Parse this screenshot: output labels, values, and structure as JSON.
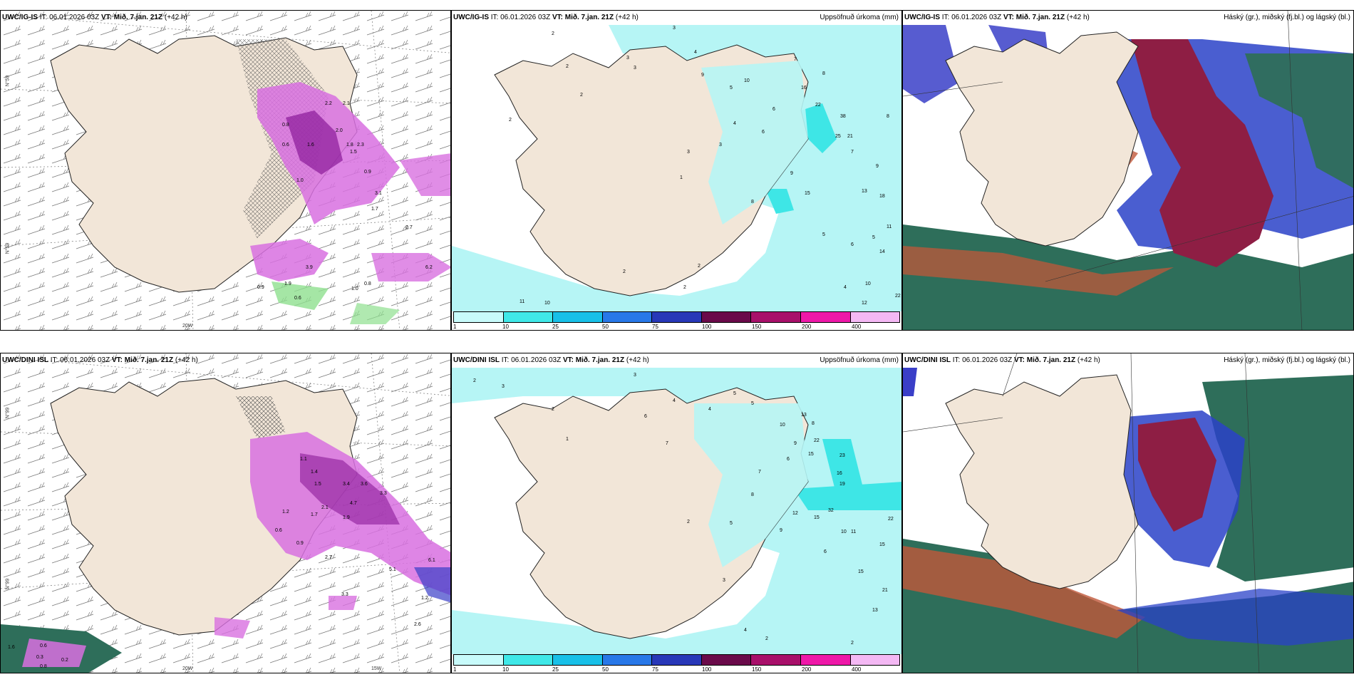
{
  "panels": [
    {
      "id": "tl",
      "title_model": "UWC/IG-IS",
      "title_it": "IT: 06.01.2026 03Z",
      "title_vt": "VT: Mið. 7.jan. 21Z",
      "title_lead": "(+42 h)",
      "right_label": "",
      "axis_labels": [
        "N°59",
        "N°59",
        "20W"
      ]
    },
    {
      "id": "tm",
      "title_model": "UWC/IG-IS",
      "title_it": "IT: 06.01.2026 03Z",
      "title_vt": "VT: Mið. 7.jan. 21Z",
      "title_lead": "(+42 h)",
      "right_label": "Uppsöfnuð úrkoma (mm)"
    },
    {
      "id": "tr",
      "title_model": "UWC/IG-IS",
      "title_it": "IT: 06.01.2026 03Z",
      "title_vt": "VT: Mið. 7.jan. 21Z",
      "title_lead": "(+42 h)",
      "right_label": "Háský (gr.), miðský (fj.bl.) og lágský (bl.)"
    },
    {
      "id": "bl",
      "title_model": "UWC/DINI ISL",
      "title_it": "IT: 06.01.2026 03Z",
      "title_vt": "VT: Mið. 7.jan. 21Z",
      "title_lead": "(+42 h)",
      "right_label": "",
      "axis_labels": [
        "N°99",
        "N°99",
        "20W",
        "15W"
      ]
    },
    {
      "id": "bm",
      "title_model": "UWC/DINI ISL",
      "title_it": "IT: 06.01.2026 03Z",
      "title_vt": "VT: Mið. 7.jan. 21Z",
      "title_lead": "(+42 h)",
      "right_label": "Uppsöfnuð úrkoma (mm)"
    },
    {
      "id": "br",
      "title_model": "UWC/DINI ISL",
      "title_it": "IT: 06.01.2026 03Z",
      "title_vt": "VT: Mið. 7.jan. 21Z",
      "title_lead": "(+42 h)",
      "right_label": "Háský (gr.), miðský (fj.bl.) og lágský (bl.)"
    }
  ],
  "precip_legend": {
    "ticks": [
      "1",
      "10",
      "25",
      "50",
      "75",
      "100",
      "150",
      "200",
      "400"
    ],
    "colors": [
      "#c8fbfb",
      "#40e8e8",
      "#18c0e8",
      "#2878e8",
      "#2838b8",
      "#6a0a4a",
      "#a8106a",
      "#ee18a8",
      "#f4b8f4"
    ]
  },
  "colors": {
    "land": "#f2e6d8",
    "precip_light": "#b6f5f5",
    "precip_mid": "#3ee6e6",
    "pink": "#d870e0",
    "pink_dark": "#8a1a98",
    "green": "#8ee08e",
    "cloud_high": "#2e6e5a",
    "cloud_mid": "#2a42c8",
    "cloud_low": "#8e1e44",
    "cloud_orange": "#c0583a"
  },
  "top_precip_values": [
    "2",
    "2",
    "2",
    "3",
    "3",
    "3",
    "3",
    "4",
    "5",
    "6",
    "7",
    "8",
    "9",
    "10",
    "16",
    "22",
    "38",
    "25",
    "21",
    "15",
    "13",
    "18",
    "11",
    "14",
    "10",
    "12",
    "22",
    "5",
    "4",
    "2",
    "2",
    "11",
    "10",
    "1",
    "2",
    "8",
    "6",
    "9",
    "7",
    "4",
    "3",
    "2",
    "5",
    "6",
    "8",
    "9"
  ],
  "bottom_precip_values": [
    "2",
    "2",
    "3",
    "3",
    "4",
    "4",
    "5",
    "5",
    "6",
    "7",
    "8",
    "9",
    "10",
    "13",
    "15",
    "22",
    "23",
    "16",
    "19",
    "32",
    "15",
    "12",
    "22",
    "15",
    "21",
    "13",
    "15",
    "10",
    "11",
    "7",
    "6",
    "4",
    "3",
    "2",
    "2",
    "1",
    "2",
    "6",
    "8",
    "9",
    "5"
  ],
  "top_diff_values": [
    "2.2",
    "2.1",
    "0.8",
    "0.6",
    "1.6",
    "2.0",
    "1.5",
    "1.8",
    "1.0",
    "0.9",
    "2.3",
    "3.1",
    "1.7",
    "0.7",
    "3.9",
    "1.9",
    "1.0",
    "0.8",
    "0.6",
    "6.2",
    "0.9"
  ],
  "bottom_diff_values": [
    "1.1",
    "1.4",
    "1.5",
    "3.4",
    "3.6",
    "3.3",
    "4.7",
    "2.1",
    "1.9",
    "1.7",
    "1.2",
    "0.6",
    "0.9",
    "2.7",
    "5.1",
    "1.2",
    "2.6",
    "3.3",
    "0.3",
    "0.2",
    "0.8",
    "1.6",
    "0.6",
    "6.1"
  ]
}
